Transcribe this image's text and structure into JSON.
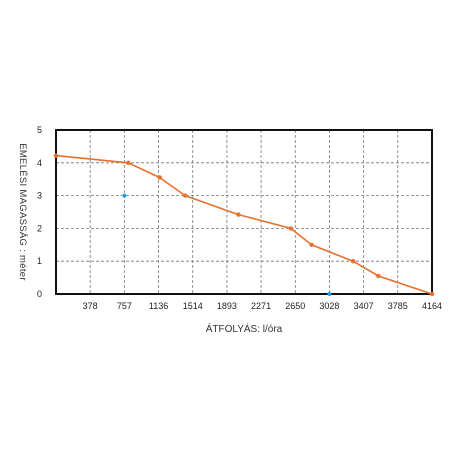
{
  "chart_data": {
    "type": "line",
    "xlabel": "ÁTFOLYÁS: l/óra",
    "ylabel": "EMELÉSI MAGASSÁG : méter",
    "xlim": [
      0,
      4164
    ],
    "ylim": [
      0,
      5
    ],
    "x_ticks": [
      378,
      757,
      1136,
      1514,
      1893,
      2271,
      2650,
      3028,
      3407,
      3785,
      4164
    ],
    "x_tick_labels": [
      "378",
      "757",
      "1136",
      "1514",
      "1893",
      "2271",
      "2650",
      "3028",
      "3407",
      "3785",
      "4164"
    ],
    "y_ticks": [
      0,
      1,
      2,
      3,
      4,
      5
    ],
    "y_tick_labels": [
      "0",
      "1",
      "2",
      "3",
      "4",
      "5"
    ],
    "grid": true,
    "grid_style": "dashed",
    "series": [
      {
        "color": "#e8702a",
        "x": [
          0,
          800,
          1150,
          1430,
          2020,
          2600,
          2830,
          3290,
          3570,
          4164
        ],
        "y": [
          4.22,
          4.0,
          3.55,
          3.0,
          2.42,
          2.0,
          1.5,
          1.0,
          0.55,
          0.0
        ]
      }
    ],
    "markers": [
      {
        "color": "#1ea0e6",
        "x": 757,
        "y": 3.0
      },
      {
        "color": "#1ea0e6",
        "x": 3028,
        "y": 0.0
      }
    ],
    "colors": {
      "line": "#e8702a",
      "marker": "#1ea0e6",
      "frame": "#111111",
      "grid": "#777777"
    }
  }
}
